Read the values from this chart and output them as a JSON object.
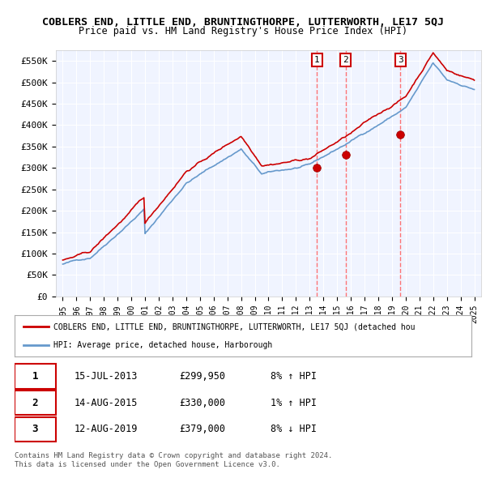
{
  "title": "COBLERS END, LITTLE END, BRUNTINGTHORPE, LUTTERWORTH, LE17 5QJ",
  "subtitle": "Price paid vs. HM Land Registry's House Price Index (HPI)",
  "background_color": "#ffffff",
  "plot_bg_color": "#f0f4ff",
  "grid_color": "#ffffff",
  "ylim": [
    0,
    575000
  ],
  "yticks": [
    0,
    50000,
    100000,
    150000,
    200000,
    250000,
    300000,
    350000,
    400000,
    450000,
    500000,
    550000
  ],
  "ytick_labels": [
    "£0",
    "£50K",
    "£100K",
    "£150K",
    "£200K",
    "£250K",
    "£300K",
    "£350K",
    "£400K",
    "£450K",
    "£500K",
    "£550K"
  ],
  "red_line_color": "#cc0000",
  "blue_line_color": "#6699cc",
  "marker_color": "#cc0000",
  "sale_marker_color": "#cc0000",
  "dashed_line_color": "#ff6666",
  "marker_border_color": "#cc0000",
  "legend_box_color": "#ffffff",
  "legend_border_color": "#aaaaaa",
  "transaction_marker_color": "#cc0000",
  "sale1_year": 2013.54,
  "sale2_year": 2015.62,
  "sale3_year": 2019.62,
  "sale1_price": 299950,
  "sale2_price": 330000,
  "sale3_price": 379000,
  "sale1_label": "1",
  "sale2_label": "2",
  "sale3_label": "3",
  "footer_line1": "Contains HM Land Registry data © Crown copyright and database right 2024.",
  "footer_line2": "This data is licensed under the Open Government Licence v3.0.",
  "legend_entry1": "COBLERS END, LITTLE END, BRUNTINGTHORPE, LUTTERWORTH, LE17 5QJ (detached hou",
  "legend_entry2": "HPI: Average price, detached house, Harborough",
  "table_row1": [
    "1",
    "15-JUL-2013",
    "£299,950",
    "8% ↑ HPI"
  ],
  "table_row2": [
    "2",
    "14-AUG-2015",
    "£330,000",
    "1% ↑ HPI"
  ],
  "table_row3": [
    "3",
    "12-AUG-2019",
    "£379,000",
    "8% ↓ HPI"
  ],
  "xmin": 1994.5,
  "xmax": 2025.5
}
